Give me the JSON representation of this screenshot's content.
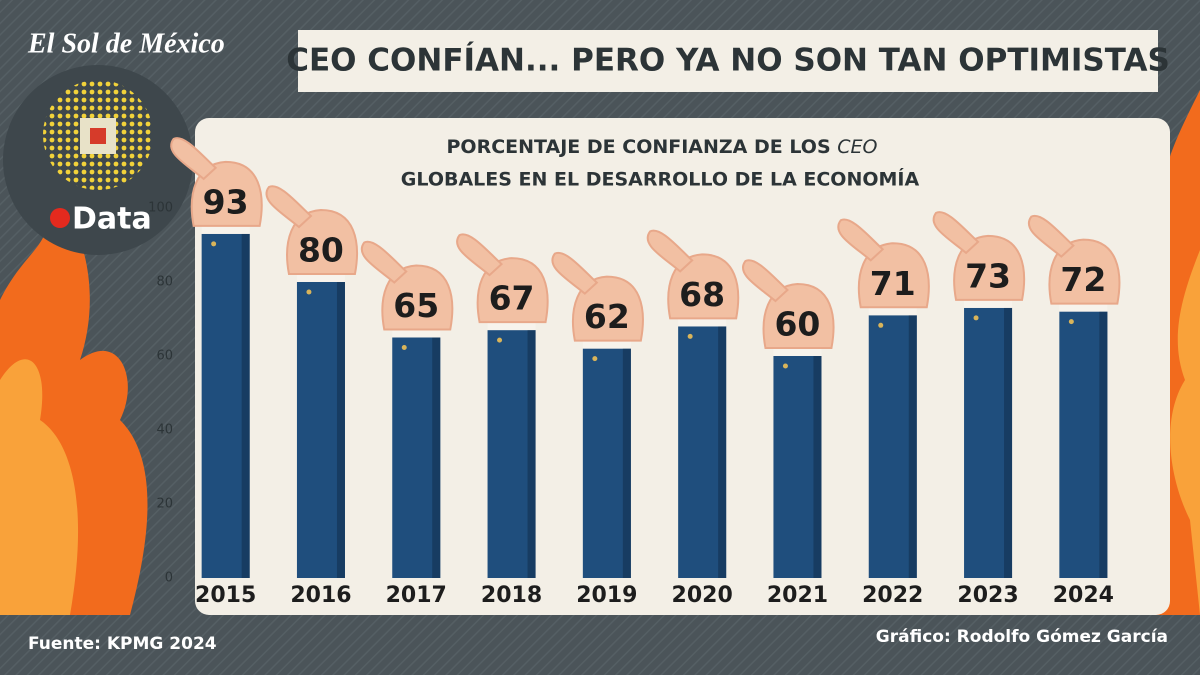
{
  "brand": "El Sol de México",
  "section": "Data",
  "headline": "CEO CONFÍAN... PERO YA NO SON TAN OPTIMISTAS",
  "chart_data": {
    "type": "bar",
    "subtitle_line1": "PORCENTAJE DE CONFIANZA DE LOS",
    "subtitle_emphasis": "CEO",
    "subtitle_line2": "GLOBALES EN EL DESARROLLO DE LA ECONOMÍA",
    "categories": [
      "2015",
      "2016",
      "2017",
      "2018",
      "2019",
      "2020",
      "2021",
      "2022",
      "2023",
      "2024"
    ],
    "values": [
      93,
      80,
      65,
      67,
      62,
      68,
      60,
      71,
      73,
      72
    ],
    "color": "#1f4e7d",
    "ylim": [
      0,
      100
    ],
    "yticks": [
      0,
      20,
      40,
      60,
      80,
      100
    ]
  },
  "source": "Fuente: KPMG 2024",
  "credit": "Gráfico: Rodolfo Gómez García"
}
